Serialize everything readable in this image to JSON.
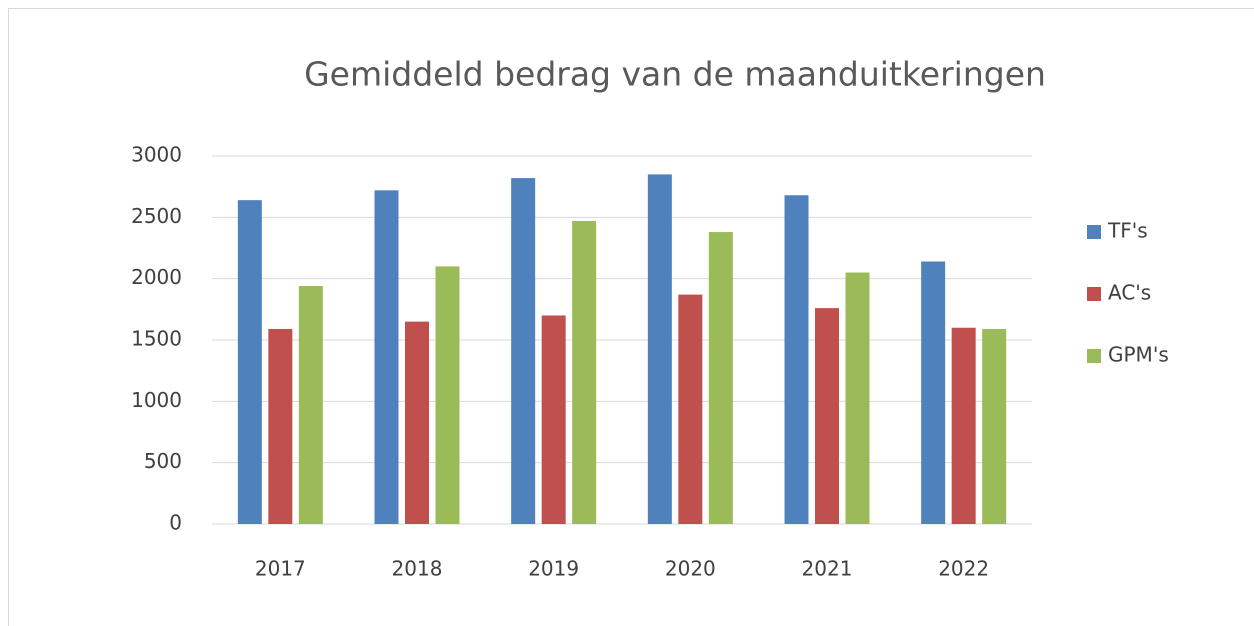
{
  "chart_data": {
    "type": "bar",
    "title": "Gemiddeld bedrag van de maanduitkeringen",
    "categories": [
      "2017",
      "2018",
      "2019",
      "2020",
      "2021",
      "2022"
    ],
    "series": [
      {
        "name": "TF's",
        "color": "#4f81bd",
        "values": [
          2640,
          2720,
          2820,
          2850,
          2680,
          2140
        ]
      },
      {
        "name": "AC's",
        "color": "#c0504d",
        "values": [
          1590,
          1650,
          1700,
          1870,
          1760,
          1600
        ]
      },
      {
        "name": "GPM's",
        "color": "#9bbb59",
        "values": [
          1940,
          2100,
          2470,
          2380,
          2050,
          1590
        ]
      }
    ],
    "ylim": [
      0,
      3000
    ],
    "yticks": [
      0,
      500,
      1000,
      1500,
      2000,
      2500,
      3000
    ],
    "grid": true,
    "legend": "right"
  }
}
